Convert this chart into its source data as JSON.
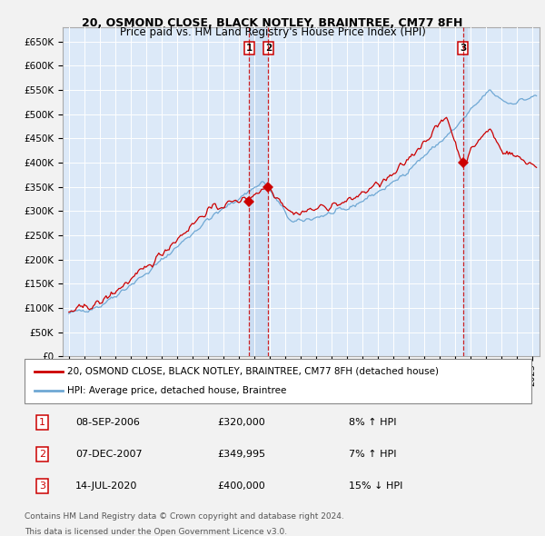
{
  "title1": "20, OSMOND CLOSE, BLACK NOTLEY, BRAINTREE, CM77 8FH",
  "title2": "Price paid vs. HM Land Registry's House Price Index (HPI)",
  "ylim": [
    0,
    680000
  ],
  "yticks": [
    0,
    50000,
    100000,
    150000,
    200000,
    250000,
    300000,
    350000,
    400000,
    450000,
    500000,
    550000,
    600000,
    650000
  ],
  "ytick_labels": [
    "£0",
    "£50K",
    "£100K",
    "£150K",
    "£200K",
    "£250K",
    "£300K",
    "£350K",
    "£400K",
    "£450K",
    "£500K",
    "£550K",
    "£600K",
    "£650K"
  ],
  "plot_bg_color": "#dce9f8",
  "fig_bg_color": "#f2f2f2",
  "grid_color": "#ffffff",
  "sale_color": "#cc0000",
  "hpi_color": "#6fa8d4",
  "vline_color": "#cc0000",
  "shade_color": "#c5d9f0",
  "transactions": [
    {
      "num": 1,
      "date_num": 2006.69,
      "price": 320000,
      "label": "1",
      "date_str": "08-SEP-2006",
      "price_str": "£320,000",
      "hpi_pct": "8%",
      "direction": "↑"
    },
    {
      "num": 2,
      "date_num": 2007.93,
      "price": 349995,
      "label": "2",
      "date_str": "07-DEC-2007",
      "price_str": "£349,995",
      "hpi_pct": "7%",
      "direction": "↑"
    },
    {
      "num": 3,
      "date_num": 2020.54,
      "price": 400000,
      "label": "3",
      "date_str": "14-JUL-2020",
      "price_str": "£400,000",
      "hpi_pct": "15%",
      "direction": "↓"
    }
  ],
  "legend_line1": "20, OSMOND CLOSE, BLACK NOTLEY, BRAINTREE, CM77 8FH (detached house)",
  "legend_line2": "HPI: Average price, detached house, Braintree",
  "footnote1": "Contains HM Land Registry data © Crown copyright and database right 2024.",
  "footnote2": "This data is licensed under the Open Government Licence v3.0.",
  "xlim_left": 1995.0,
  "xlim_right": 2025.5
}
